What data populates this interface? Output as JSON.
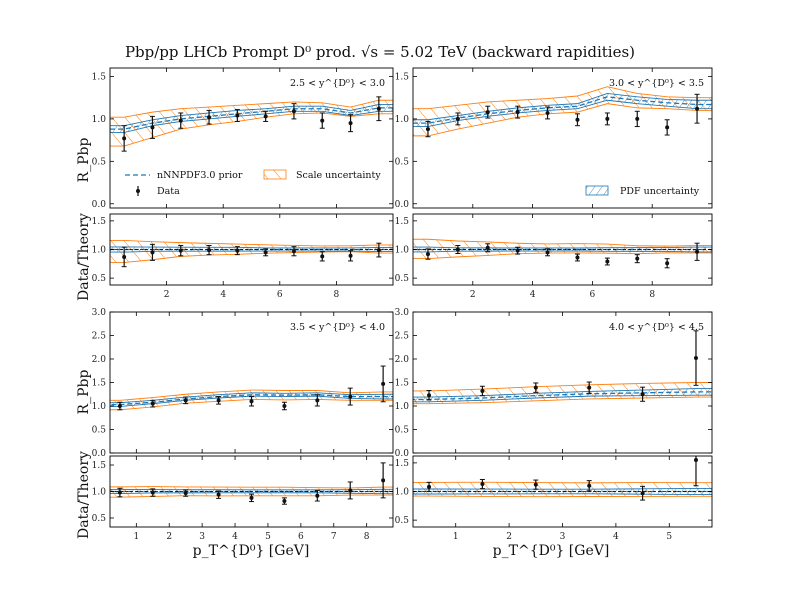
{
  "chart_data": {
    "type": "line",
    "title": "Pbp/pp LHCb Prompt D⁰ prod. √s = 5.02 TeV (backward rapidities)",
    "xlabel": "p_T^{D⁰} [GeV]",
    "ylabel_top": "R_Pbp",
    "ylabel_bottom": "Data/Theory",
    "legend": {
      "prior": "nNNPDF3.0 prior",
      "scale": "Scale uncertainty",
      "data": "Data",
      "pdf": "PDF uncertainty"
    },
    "colors": {
      "prior": "#1f77b4",
      "scale": "#ff7f0e",
      "data": "#111111"
    },
    "panels": [
      {
        "id": "p1",
        "label": "2.5 < y^{D⁰} < 3.0",
        "xlim": [
          0,
          10
        ],
        "xticks": [
          2,
          4,
          6,
          8
        ],
        "ylim": [
          -0.05,
          1.6
        ],
        "yticks": [
          "0.0",
          "0.5",
          "1.0",
          "1.5"
        ],
        "rlim": [
          0.38,
          1.62
        ],
        "rticks": [
          "0.5",
          "1.0",
          "1.5"
        ],
        "x": [
          0.5,
          1.5,
          2.5,
          3.5,
          4.5,
          5.5,
          6.5,
          7.5,
          8.5,
          9.5
        ],
        "prior": [
          0.88,
          0.95,
          1.0,
          1.03,
          1.06,
          1.09,
          1.12,
          1.12,
          1.07,
          1.13
        ],
        "pdf_lo": [
          0.84,
          0.92,
          0.97,
          1.0,
          1.03,
          1.06,
          1.09,
          1.09,
          1.04,
          1.09
        ],
        "pdf_hi": [
          0.92,
          0.99,
          1.04,
          1.07,
          1.1,
          1.12,
          1.15,
          1.15,
          1.1,
          1.17
        ],
        "scale_lo": [
          0.68,
          0.78,
          0.88,
          0.93,
          0.97,
          1.02,
          1.06,
          1.07,
          1.03,
          1.06
        ],
        "scale_hi": [
          1.02,
          1.08,
          1.12,
          1.14,
          1.16,
          1.18,
          1.2,
          1.19,
          1.14,
          1.22
        ],
        "data": [
          0.77,
          0.9,
          0.98,
          1.02,
          1.04,
          1.03,
          1.09,
          0.98,
          0.95,
          1.12
        ],
        "err": [
          0.15,
          0.13,
          0.09,
          0.08,
          0.07,
          0.06,
          0.09,
          0.09,
          0.1,
          0.14
        ],
        "ratio": [
          0.87,
          0.95,
          0.98,
          0.99,
          0.98,
          0.95,
          0.97,
          0.88,
          0.89,
          0.99
        ],
        "ratio_err": [
          0.17,
          0.14,
          0.09,
          0.08,
          0.07,
          0.06,
          0.08,
          0.08,
          0.09,
          0.12
        ]
      },
      {
        "id": "p2",
        "label": "3.0 < y^{D⁰} < 3.5",
        "xlim": [
          0,
          10
        ],
        "xticks": [
          2,
          4,
          6,
          8
        ],
        "ylim": [
          -0.05,
          1.6
        ],
        "yticks": [
          "0.0",
          "0.5",
          "1.0",
          "1.5"
        ],
        "rlim": [
          0.38,
          1.62
        ],
        "rticks": [
          "0.5",
          "1.0",
          "1.5"
        ],
        "x": [
          0.5,
          1.5,
          2.5,
          3.5,
          4.5,
          5.5,
          6.5,
          7.5,
          8.5,
          9.5
        ],
        "prior": [
          0.95,
          1.01,
          1.06,
          1.1,
          1.13,
          1.15,
          1.26,
          1.22,
          1.19,
          1.17
        ],
        "pdf_lo": [
          0.91,
          0.98,
          1.03,
          1.07,
          1.1,
          1.12,
          1.22,
          1.18,
          1.15,
          1.12
        ],
        "pdf_hi": [
          0.99,
          1.04,
          1.09,
          1.13,
          1.16,
          1.18,
          1.3,
          1.26,
          1.23,
          1.22
        ],
        "scale_lo": [
          0.8,
          0.88,
          0.95,
          1.02,
          1.06,
          1.08,
          1.18,
          1.13,
          1.12,
          1.1
        ],
        "scale_hi": [
          1.12,
          1.16,
          1.2,
          1.22,
          1.24,
          1.27,
          1.38,
          1.3,
          1.26,
          1.25
        ],
        "data": [
          0.88,
          1.0,
          1.08,
          1.08,
          1.07,
          0.99,
          1.0,
          1.0,
          0.9,
          1.12
        ],
        "err": [
          0.09,
          0.07,
          0.07,
          0.07,
          0.07,
          0.07,
          0.07,
          0.09,
          0.09,
          0.17
        ],
        "ratio": [
          0.92,
          1.0,
          1.03,
          0.98,
          0.95,
          0.86,
          0.79,
          0.84,
          0.76,
          0.96
        ],
        "ratio_err": [
          0.09,
          0.07,
          0.07,
          0.06,
          0.06,
          0.06,
          0.06,
          0.07,
          0.08,
          0.15
        ]
      },
      {
        "id": "p3",
        "label": "3.5 < y^{D⁰} < 4.0",
        "xlim": [
          0.2,
          8.8
        ],
        "xticks": [
          1,
          2,
          3,
          4,
          5,
          6,
          7,
          8
        ],
        "ylim": [
          0.0,
          3.0
        ],
        "yticks": [
          "0.0",
          "0.5",
          "1.0",
          "1.5",
          "2.0",
          "2.5",
          "3.0"
        ],
        "rlim": [
          0.33,
          1.67
        ],
        "rticks": [
          "0.5",
          "1.0",
          "1.5"
        ],
        "x": [
          0.5,
          1.5,
          2.5,
          3.5,
          4.5,
          5.5,
          6.5,
          7.5,
          8.5
        ],
        "prior": [
          1.03,
          1.08,
          1.15,
          1.2,
          1.24,
          1.23,
          1.24,
          1.2,
          1.2
        ],
        "pdf_lo": [
          0.99,
          1.05,
          1.12,
          1.17,
          1.21,
          1.2,
          1.21,
          1.16,
          1.15
        ],
        "pdf_hi": [
          1.07,
          1.12,
          1.19,
          1.24,
          1.28,
          1.27,
          1.28,
          1.24,
          1.25
        ],
        "scale_lo": [
          0.92,
          0.98,
          1.06,
          1.1,
          1.14,
          1.13,
          1.14,
          1.12,
          1.12
        ],
        "scale_hi": [
          1.12,
          1.18,
          1.25,
          1.3,
          1.34,
          1.33,
          1.33,
          1.28,
          1.3
        ],
        "data": [
          1.0,
          1.05,
          1.12,
          1.12,
          1.1,
          1.0,
          1.12,
          1.2,
          1.47
        ],
        "err": [
          0.08,
          0.07,
          0.07,
          0.08,
          0.1,
          0.08,
          0.12,
          0.18,
          0.38
        ],
        "ratio": [
          0.98,
          0.98,
          0.97,
          0.94,
          0.88,
          0.82,
          0.92,
          1.02,
          1.21
        ],
        "ratio_err": [
          0.08,
          0.07,
          0.06,
          0.07,
          0.07,
          0.06,
          0.1,
          0.16,
          0.33
        ]
      },
      {
        "id": "p4",
        "label": "4.0 < y^{D⁰} < 4.5",
        "xlim": [
          0.2,
          5.8
        ],
        "xticks": [
          1,
          2,
          3,
          4,
          5
        ],
        "ylim": [
          0.0,
          3.0
        ],
        "yticks": [
          "0.0",
          "0.5",
          "1.0",
          "1.5",
          "2.0",
          "2.5",
          "3.0"
        ],
        "rlim": [
          0.38,
          1.62
        ],
        "rticks": [
          "0.5",
          "1.0",
          "1.5"
        ],
        "x": [
          0.5,
          1.5,
          2.5,
          3.5,
          4.5,
          5.5
        ],
        "prior": [
          1.14,
          1.17,
          1.22,
          1.26,
          1.28,
          1.3
        ],
        "pdf_lo": [
          1.09,
          1.12,
          1.17,
          1.21,
          1.22,
          1.23
        ],
        "pdf_hi": [
          1.19,
          1.22,
          1.27,
          1.31,
          1.34,
          1.37
        ],
        "scale_lo": [
          1.05,
          1.07,
          1.11,
          1.15,
          1.17,
          1.19
        ],
        "scale_hi": [
          1.32,
          1.36,
          1.41,
          1.45,
          1.48,
          1.5
        ],
        "data": [
          1.23,
          1.32,
          1.39,
          1.39,
          1.25,
          2.02
        ],
        "err": [
          0.1,
          0.1,
          0.1,
          0.12,
          0.15,
          0.58
        ],
        "ratio": [
          1.08,
          1.13,
          1.12,
          1.1,
          0.97,
          1.55
        ],
        "ratio_err": [
          0.08,
          0.08,
          0.08,
          0.09,
          0.12,
          0.45
        ]
      }
    ]
  }
}
